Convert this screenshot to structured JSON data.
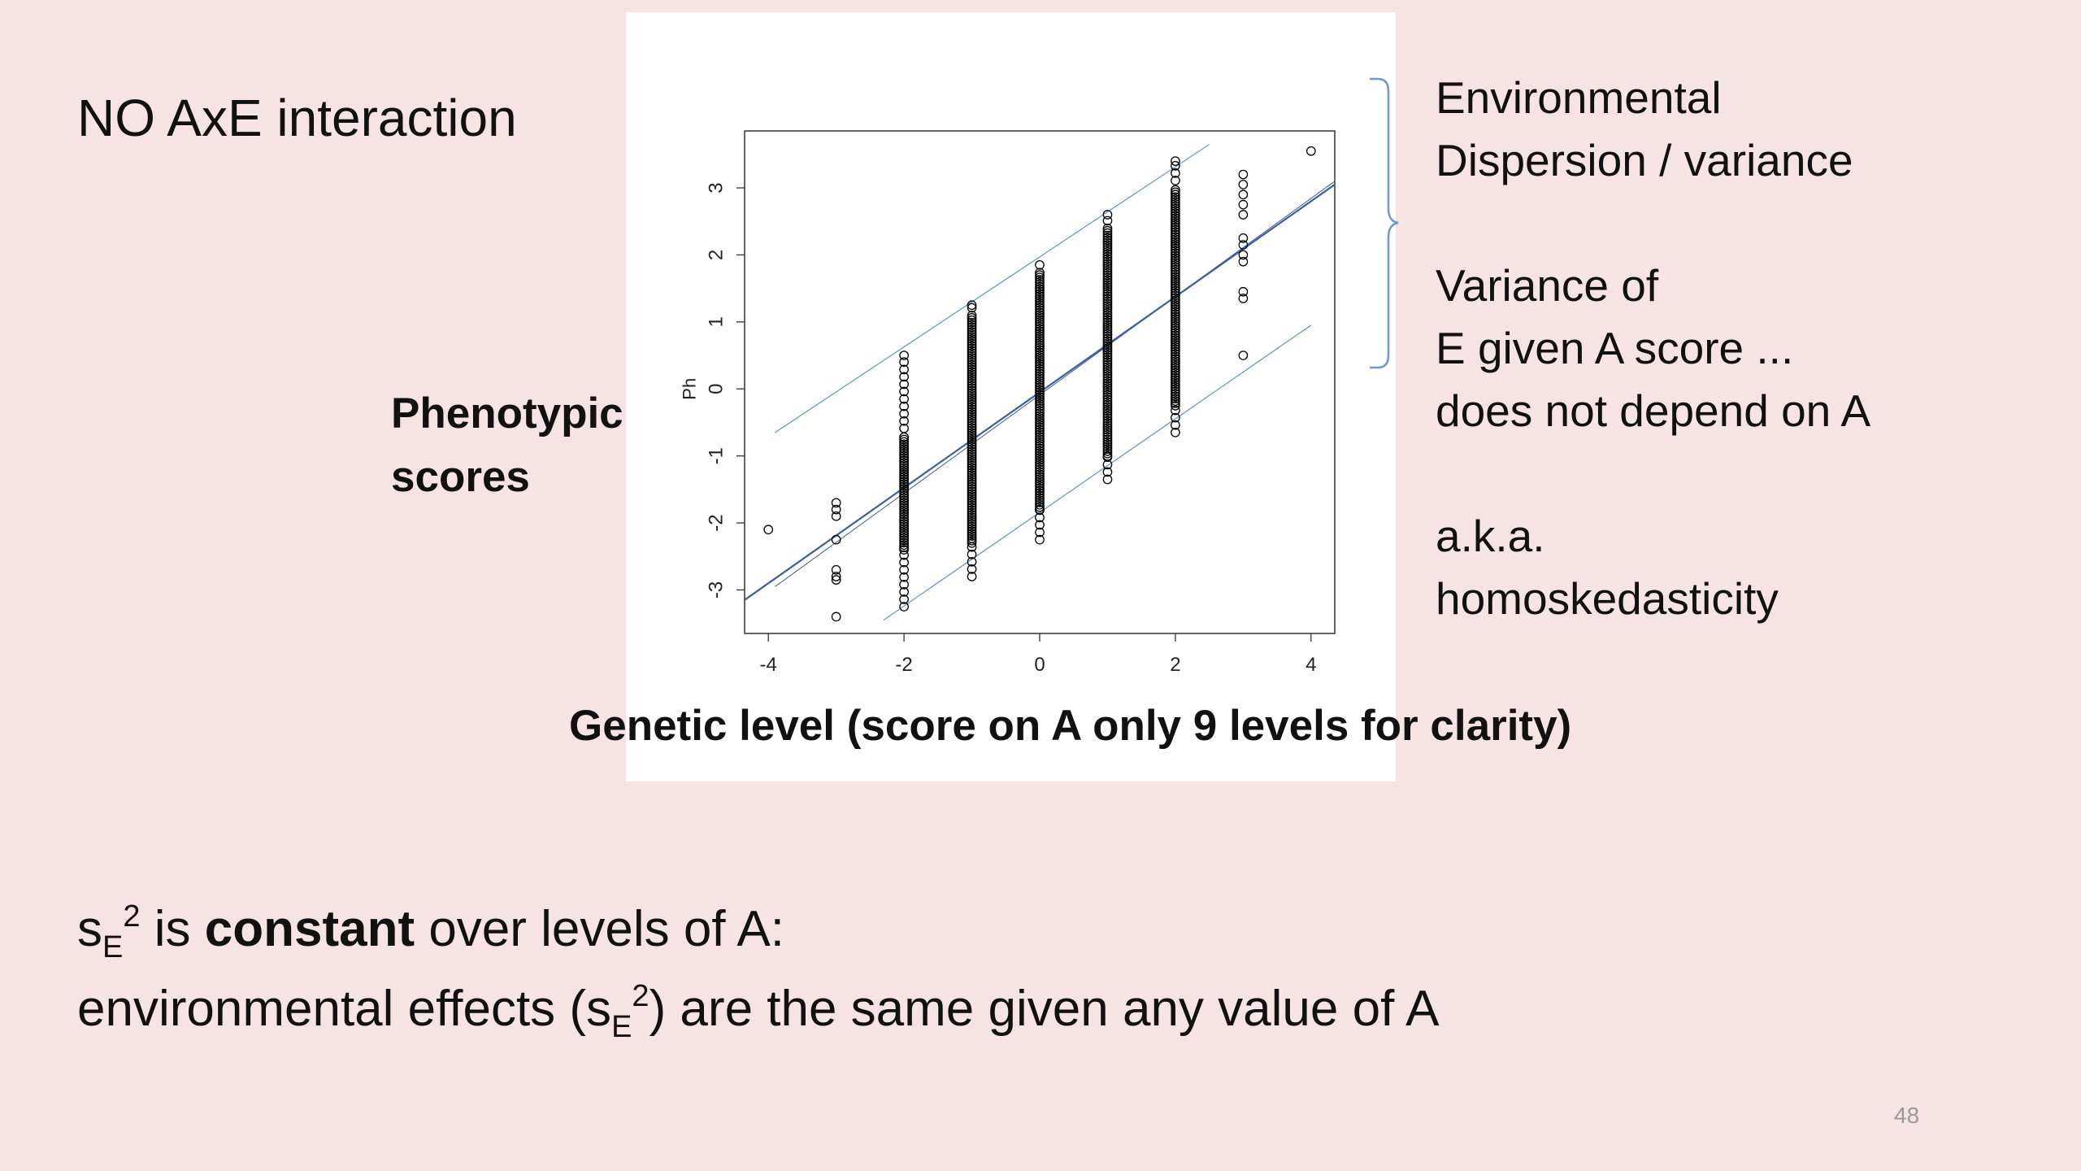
{
  "slide": {
    "title": "NO AxE interaction",
    "page_number": "48"
  },
  "y_label": {
    "line1": "Phenotypic",
    "line2": "scores"
  },
  "right_notes": {
    "l1": "Environmental",
    "l2": "Dispersion / variance",
    "l3": "Variance of",
    "l4": "E given A score ...",
    "l5": "does not depend on A",
    "l6": "a.k.a.",
    "l7": "homoskedasticity"
  },
  "bottom": {
    "line1_s": "s",
    "line1_sub": "E",
    "line1_sup": "2",
    "line1_is": " is ",
    "line1_bold": "constant",
    "line1_rest": " over levels of A:",
    "line2_pre": "environmental effects (s",
    "line2_sub": "E",
    "line2_sup": "2",
    "line2_post": ") are the same given any value of A"
  },
  "colors": {
    "background": "#f6e4e4",
    "panel": "#ffffff",
    "band_line": "#6f97cf",
    "fit_line": "#3d5f9c",
    "points": "#000000",
    "bracket": "#6f97cf"
  },
  "chart_data": {
    "type": "scatter",
    "title": "",
    "xlabel": "Genetic level (score on A only 9 levels for clarity)",
    "ylabel": "Ph",
    "xlim": [
      -4.35,
      4.35
    ],
    "ylim": [
      -3.65,
      3.85
    ],
    "x_ticks": [
      -4,
      -2,
      0,
      2,
      4
    ],
    "y_ticks": [
      -3,
      -2,
      -1,
      0,
      1,
      2,
      3
    ],
    "columns": [
      {
        "x": -4,
        "points": [
          -2.1
        ]
      },
      {
        "x": -3,
        "points": [
          -1.7,
          -1.8,
          -1.9,
          -2.25,
          -2.7,
          -2.8,
          -2.85,
          -3.4
        ]
      },
      {
        "x": -2,
        "range": [
          -3.25,
          0.5
        ],
        "dense_range": [
          -2.4,
          -0.7
        ]
      },
      {
        "x": -1,
        "range": [
          -2.8,
          1.25
        ],
        "dense_range": [
          -2.3,
          1.1
        ]
      },
      {
        "x": 0,
        "range": [
          -2.25,
          1.85
        ],
        "dense_range": [
          -1.8,
          1.75
        ]
      },
      {
        "x": 1,
        "range": [
          -1.35,
          2.6
        ],
        "dense_range": [
          -1.0,
          2.4
        ]
      },
      {
        "x": 2,
        "range": [
          -0.65,
          3.4
        ],
        "dense_range": [
          -0.25,
          3.0
        ]
      },
      {
        "x": 3,
        "points": [
          0.5,
          1.35,
          1.45,
          1.9,
          2.0,
          2.15,
          2.25,
          2.6,
          2.75,
          2.9,
          3.05,
          3.2
        ]
      },
      {
        "x": 4,
        "points": [
          3.55
        ]
      }
    ],
    "lines": [
      {
        "name": "",
        "x1": -4.35,
        "y1": -3.15,
        "x2": 4.35,
        "y2": 3.05,
        "color": "#3d5f9c",
        "width": 2.2
      },
      {
        "name": "",
        "x1": -3.9,
        "y1": -0.65,
        "x2": 2.5,
        "y2": 3.65,
        "color": "#6f97cf",
        "width": 1.3
      },
      {
        "name": "",
        "x1": -2.3,
        "y1": -3.45,
        "x2": 4.0,
        "y2": 0.95,
        "color": "#6f97cf",
        "width": 1.3
      },
      {
        "name": "",
        "x1": -3.9,
        "y1": -2.95,
        "x2": 4.35,
        "y2": 3.1,
        "color": "#3d5f9c",
        "width": 1.0
      }
    ]
  }
}
